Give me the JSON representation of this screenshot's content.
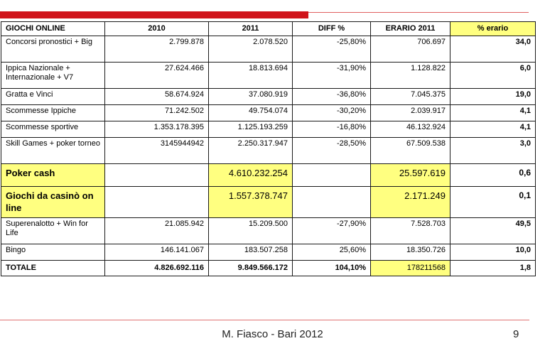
{
  "table": {
    "headers": [
      "GIOCHI ONLINE",
      "2010",
      "2011",
      "DIFF %",
      "ERARIO 2011",
      "% erario"
    ],
    "rows": [
      {
        "name": "Concorsi pronostici + Big",
        "y2010": "2.799.878",
        "y2011": "2.078.520",
        "diff": "-25,80%",
        "erario": "706.697",
        "pct": "34,0"
      },
      {
        "name": "Ippica Nazionale + Internazionale + V7",
        "y2010": "27.624.466",
        "y2011": "18.813.694",
        "diff": "-31,90%",
        "erario": "1.128.822",
        "pct": "6,0"
      },
      {
        "name": "Gratta e Vinci",
        "y2010": "58.674.924",
        "y2011": "37.080.919",
        "diff": "-36,80%",
        "erario": "7.045.375",
        "pct": "19,0"
      },
      {
        "name": "Scommesse Ippiche",
        "y2010": "71.242.502",
        "y2011": "49.754.074",
        "diff": "-30,20%",
        "erario": "2.039.917",
        "pct": "4,1"
      },
      {
        "name": "Scommesse sportive",
        "y2010": "1.353.178.395",
        "y2011": "1.125.193.259",
        "diff": "-16,80%",
        "erario": "46.132.924",
        "pct": "4,1"
      },
      {
        "name": "Skill Games + poker torneo",
        "y2010": "3145944942",
        "y2011": "2.250.317.947",
        "diff": "-28,50%",
        "erario": "67.509.538",
        "pct": "3,0"
      },
      {
        "name": "Poker cash",
        "y2010": "",
        "y2011": "4.610.232.254",
        "diff": "",
        "erario": "25.597.619",
        "pct": "0,6"
      },
      {
        "name": "Giochi da casinò on line",
        "y2010": "",
        "y2011": "1.557.378.747",
        "diff": "",
        "erario": "2.171.249",
        "pct": "0,1"
      },
      {
        "name": "Superenalotto + Win for Life",
        "y2010": "21.085.942",
        "y2011": "15.209.500",
        "diff": "-27,90%",
        "erario": "7.528.703",
        "pct": "49,5"
      },
      {
        "name": "Bingo",
        "y2010": "146.141.067",
        "y2011": "183.507.258",
        "diff": "25,60%",
        "erario": "18.350.726",
        "pct": "10,0"
      },
      {
        "name": "TOTALE",
        "y2010": "4.826.692.116",
        "y2011": "9.849.566.172",
        "diff": "104,10%",
        "erario": "178211568",
        "pct": "1,8"
      }
    ]
  },
  "footer": {
    "text": "M. Fiasco - Bari 2012",
    "page": "9"
  },
  "colors": {
    "accent_red": "#d0141b",
    "highlight_yellow": "#ffff80"
  }
}
